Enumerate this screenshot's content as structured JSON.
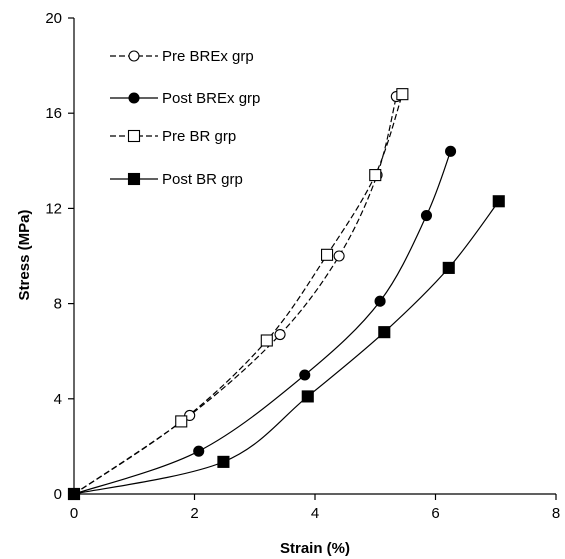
{
  "chart_data": {
    "type": "line",
    "title": "",
    "xlabel": "Strain (%)",
    "ylabel": "Stress (MPa)",
    "xlim": [
      0,
      8
    ],
    "ylim": [
      0,
      20
    ],
    "xticks": [
      0,
      2,
      4,
      6,
      8
    ],
    "yticks": [
      0,
      4,
      8,
      12,
      16,
      20
    ],
    "grid": false,
    "legend_position": "top-left",
    "series": [
      {
        "name": "Pre BREx grp",
        "line": "dashed",
        "marker": "circle-open",
        "x": [
          0,
          1.92,
          3.42,
          4.4,
          5.03,
          5.35
        ],
        "y": [
          0,
          3.3,
          6.7,
          10.0,
          13.4,
          16.7
        ]
      },
      {
        "name": "Post BREx grp",
        "line": "solid",
        "marker": "circle-filled",
        "x": [
          0,
          2.07,
          3.83,
          5.08,
          5.85,
          6.25
        ],
        "y": [
          0,
          1.8,
          5.0,
          8.1,
          11.7,
          14.4
        ]
      },
      {
        "name": "Pre BR grp",
        "line": "dashed",
        "marker": "square-open",
        "x": [
          0,
          1.78,
          3.2,
          4.2,
          5.0,
          5.45
        ],
        "y": [
          0,
          3.05,
          6.45,
          10.05,
          13.4,
          16.8
        ]
      },
      {
        "name": "Post BR grp",
        "line": "solid",
        "marker": "square-filled",
        "x": [
          0,
          2.48,
          3.88,
          5.15,
          6.22,
          7.05
        ],
        "y": [
          0,
          1.35,
          4.1,
          6.8,
          9.5,
          12.3
        ]
      }
    ]
  }
}
